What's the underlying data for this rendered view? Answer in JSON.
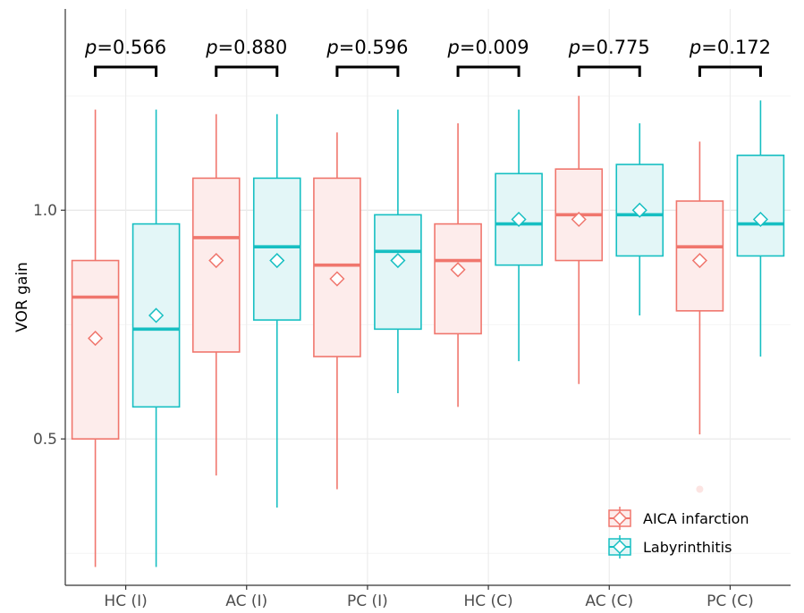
{
  "chart_data": {
    "type": "box",
    "ylabel": "VOR gain",
    "xlabel": "",
    "ylim": [
      0.18,
      1.44
    ],
    "yticks": [
      0.5,
      1.0
    ],
    "ytick_labels": [
      "0.5",
      "1.0"
    ],
    "categories": [
      "HC (I)",
      "AC (I)",
      "PC (I)",
      "HC (C)",
      "AC (C)",
      "PC (C)"
    ],
    "p_values": [
      "0.566",
      "0.880",
      "0.596",
      "0.009",
      "0.775",
      "0.172"
    ],
    "p_prefix": "p",
    "p_sep": "=",
    "series": [
      {
        "name": "AICA infarction",
        "color": "#f0766d",
        "fill": "#fdeceb",
        "whisker_low": [
          0.22,
          0.42,
          0.39,
          0.57,
          0.62,
          0.51
        ],
        "q1": [
          0.5,
          0.69,
          0.68,
          0.73,
          0.89,
          0.78
        ],
        "median": [
          0.81,
          0.94,
          0.88,
          0.89,
          0.99,
          0.92
        ],
        "q3": [
          0.89,
          1.07,
          1.07,
          0.97,
          1.09,
          1.02
        ],
        "whisker_high": [
          1.22,
          1.21,
          1.17,
          1.19,
          1.25,
          1.15
        ],
        "mean": [
          0.72,
          0.89,
          0.85,
          0.87,
          0.98,
          0.89
        ],
        "outliers": [
          [],
          [],
          [],
          [],
          [],
          [
            0.39
          ]
        ]
      },
      {
        "name": "Labyrinthitis",
        "color": "#16bfc2",
        "fill": "#e3f6f7",
        "whisker_low": [
          0.22,
          0.35,
          0.6,
          0.67,
          0.77,
          0.68
        ],
        "q1": [
          0.57,
          0.76,
          0.74,
          0.88,
          0.9,
          0.9
        ],
        "median": [
          0.74,
          0.92,
          0.91,
          0.97,
          0.99,
          0.97
        ],
        "q3": [
          0.97,
          1.07,
          0.99,
          1.08,
          1.1,
          1.12
        ],
        "whisker_high": [
          1.22,
          1.21,
          1.22,
          1.22,
          1.19,
          1.24
        ],
        "mean": [
          0.77,
          0.89,
          0.89,
          0.98,
          1.0,
          0.98
        ],
        "outliers": [
          [],
          [],
          [],
          [],
          [],
          []
        ]
      }
    ],
    "legend": {
      "position": "bottom-right"
    },
    "grid": true
  }
}
